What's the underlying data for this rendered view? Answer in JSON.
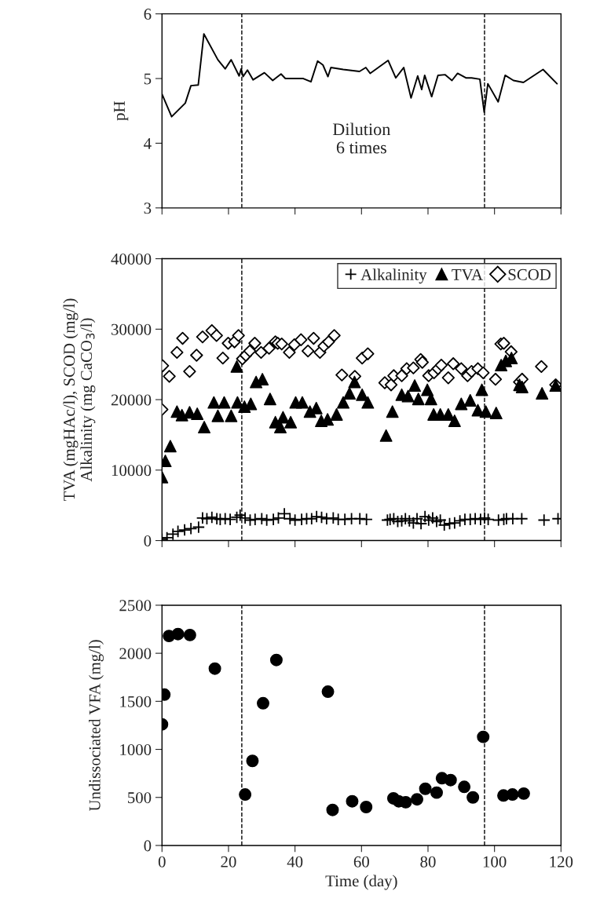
{
  "chart_data": [
    {
      "type": "line",
      "ylabel": "pH",
      "xlim": [
        0,
        120
      ],
      "xticks": [
        0,
        20,
        40,
        60,
        80,
        100,
        120
      ],
      "ylim": [
        3,
        6
      ],
      "yticks": [
        3,
        4,
        5,
        6
      ],
      "tick_labels": "y",
      "line_style": "solid",
      "marker": "none",
      "annotations": [
        "Dilution\n6 times"
      ],
      "ref_lines": [
        {
          "axis": "x",
          "value": 24,
          "color": "#000000",
          "line_style": "dashed"
        },
        {
          "axis": "x",
          "value": 97,
          "color": "#000000",
          "line_style": "dashed"
        }
      ],
      "series": [
        {
          "color": "#000000",
          "x": [
            0,
            2.9,
            7.0,
            8.7,
            10.9,
            12.6,
            16.8,
            19.0,
            20.8,
            23.2,
            23.8,
            24.4,
            25.7,
            27.4,
            30.8,
            33.3,
            35.8,
            37.1,
            42.5,
            44.8,
            46.8,
            48.4,
            49.9,
            50.8,
            54.5,
            59.4,
            61.3,
            62.6,
            68.0,
            70.3,
            72.7,
            74.9,
            76.9,
            78.1,
            79.0,
            81.1,
            83.0,
            85.1,
            87.2,
            88.9,
            91.4,
            93.1,
            95.6,
            96.9,
            98.0,
            101.1,
            103.2,
            105.7,
            108.7,
            114.6,
            118.8
          ],
          "values": [
            4.76,
            4.41,
            4.62,
            4.89,
            4.9,
            5.69,
            5.29,
            5.15,
            5.29,
            5.04,
            5.15,
            5.03,
            5.13,
            4.98,
            5.09,
            4.97,
            5.07,
            5.0,
            5.0,
            4.95,
            5.27,
            5.21,
            5.03,
            5.17,
            5.14,
            5.11,
            5.17,
            5.08,
            5.28,
            5.01,
            5.17,
            4.7,
            5.04,
            4.83,
            5.05,
            4.72,
            5.05,
            5.06,
            4.97,
            5.08,
            5.01,
            5.01,
            4.99,
            4.48,
            4.92,
            4.64,
            5.05,
            4.97,
            4.94,
            5.14,
            4.92
          ]
        }
      ]
    },
    {
      "type": "scatter",
      "ylabel": "TVA (mgHAc/l), SCOD (mg/l)\nAlkalinity (mg CaCO$_{3}$/l)",
      "xlim": [
        0,
        120
      ],
      "xticks": [
        0,
        20,
        40,
        60,
        80,
        100,
        120
      ],
      "ylim": [
        0,
        40000
      ],
      "yticks": [
        0,
        10000,
        20000,
        30000,
        40000
      ],
      "tick_labels": "y",
      "legend": "top right",
      "ref_lines": [
        {
          "axis": "x",
          "value": 24,
          "color": "#000000",
          "line_style": "dashed"
        },
        {
          "axis": "x",
          "value": 97,
          "color": "#000000",
          "line_style": "dashed"
        }
      ],
      "series": [
        {
          "name": "Alkalinity",
          "color": "#000000",
          "marker": "cross",
          "x": [
            0,
            1.5,
            3.3,
            4.8,
            6.8,
            8.7,
            11,
            12.2,
            13.5,
            15,
            16.5,
            17.5,
            19,
            20.5,
            22.5,
            23.5,
            25,
            26.5,
            28,
            30,
            31.5,
            33.5,
            35,
            36.8,
            38.5,
            40,
            42,
            43.5,
            45,
            46.5,
            48,
            49.5,
            51.5,
            53,
            55,
            57,
            59.5,
            61.5,
            67.8,
            68.6,
            69.7,
            70.9,
            72.1,
            73.2,
            74.4,
            75.6,
            76.7,
            77.9,
            79.1,
            80.2,
            81.4,
            82.6,
            83.7,
            84.9,
            86.5,
            88.0,
            89.6,
            91.1,
            92.7,
            94.2,
            95.8,
            97.0,
            98.1,
            101.2,
            102.8,
            103.6,
            105.5,
            108.2,
            114.9,
            119.1
          ],
          "values": [
            200,
            400,
            900,
            1300,
            1500,
            1700,
            1900,
            3200,
            3100,
            3300,
            3100,
            3000,
            3100,
            3000,
            3300,
            3600,
            3200,
            2900,
            3000,
            3100,
            2900,
            3000,
            3200,
            3800,
            3100,
            2900,
            3000,
            3100,
            3100,
            3400,
            3300,
            3100,
            3200,
            3000,
            3000,
            3100,
            3100,
            3000,
            2900,
            3000,
            3100,
            2700,
            2800,
            3100,
            2800,
            2500,
            3100,
            2400,
            3400,
            2900,
            3200,
            2700,
            2900,
            2200,
            2400,
            2500,
            2800,
            3000,
            3000,
            3100,
            3000,
            3200,
            3000,
            2900,
            3000,
            3100,
            3100,
            3100,
            2900,
            3100
          ]
        },
        {
          "name": "TVA",
          "color": "#000000",
          "marker": "triangle",
          "x": [
            0,
            1.0,
            2.5,
            4.5,
            6.0,
            8.3,
            10.6,
            12.7,
            15.6,
            16.8,
            18.7,
            20.8,
            22.5,
            22.7,
            24.8,
            26.7,
            28.3,
            30.2,
            32.5,
            34.1,
            35.6,
            36.4,
            38.7,
            40.2,
            42.2,
            44.5,
            46.4,
            47.9,
            49.8,
            52.5,
            54.5,
            56.4,
            57.9,
            60.2,
            61.9,
            67.4,
            69.3,
            72.1,
            74.0,
            76.0,
            77.1,
            79.8,
            80.9,
            81.7,
            83.7,
            86.1,
            88.0,
            90.0,
            92.7,
            95.0,
            96.2,
            97.4,
            100.5,
            102.0,
            103.4,
            105.1,
            107.5,
            108.3,
            114.3,
            118.4
          ],
          "values": [
            9000,
            11300,
            13400,
            18300,
            17800,
            18200,
            18000,
            16100,
            19600,
            17700,
            19600,
            17700,
            24700,
            19600,
            19000,
            19400,
            22500,
            22900,
            20100,
            16800,
            16100,
            17500,
            16800,
            19600,
            19600,
            18300,
            18800,
            17000,
            17200,
            17900,
            19600,
            20900,
            22500,
            20700,
            19600,
            14900,
            18300,
            20700,
            20500,
            22000,
            20100,
            21400,
            20100,
            17900,
            17900,
            17900,
            17000,
            19400,
            19900,
            18500,
            21400,
            18300,
            18100,
            24900,
            25500,
            25900,
            22100,
            21800,
            20900,
            22000
          ]
        },
        {
          "name": "SCOD",
          "color": "#000000",
          "marker": "diamond",
          "x": [
            0,
            0.2,
            2.2,
            4.5,
            6.2,
            8.3,
            10.4,
            12.2,
            15.0,
            16.4,
            18.3,
            19.9,
            21.8,
            23.0,
            24.2,
            25.2,
            26.4,
            27.9,
            29.8,
            32.2,
            34.1,
            34.8,
            36.0,
            38.3,
            39.8,
            41.8,
            43.9,
            45.6,
            47.5,
            48.7,
            50.1,
            51.8,
            54.1,
            58.0,
            60.2,
            61.9,
            67.0,
            68.9,
            69.7,
            72.1,
            73.6,
            75.6,
            77.8,
            78.3,
            80.2,
            81.8,
            83.0,
            84.0,
            86.1,
            87.6,
            90.0,
            91.9,
            93.1,
            95.0,
            96.6,
            100.3,
            101.9,
            102.8,
            105.0,
            107.5,
            108.3,
            114.1,
            118.4
          ],
          "values": [
            18600,
            24800,
            23300,
            26700,
            28700,
            24000,
            26300,
            28900,
            29800,
            29100,
            25900,
            28000,
            28200,
            29100,
            25800,
            26300,
            26900,
            28000,
            26700,
            27300,
            28200,
            28000,
            27900,
            26700,
            27800,
            28500,
            26900,
            28700,
            26700,
            27600,
            28200,
            29100,
            23500,
            23300,
            25900,
            26500,
            22400,
            22100,
            23400,
            23400,
            24400,
            24500,
            25700,
            25300,
            23400,
            23800,
            24400,
            24900,
            23100,
            25100,
            24400,
            23400,
            24000,
            24400,
            23800,
            22900,
            27900,
            28000,
            26800,
            22500,
            22900,
            24700,
            22100
          ]
        }
      ]
    },
    {
      "type": "scatter",
      "xlabel": "Time (day)",
      "ylabel": "Undissociated VFA (mg/l)",
      "xlim": [
        0,
        120
      ],
      "xticks": [
        0,
        20,
        40,
        60,
        80,
        100,
        120
      ],
      "ylim": [
        0,
        2500
      ],
      "yticks": [
        0,
        500,
        1000,
        1500,
        2000,
        2500
      ],
      "ref_lines": [
        {
          "axis": "x",
          "value": 24,
          "color": "#000000",
          "line_style": "dashed"
        },
        {
          "axis": "x",
          "value": 97,
          "color": "#000000",
          "line_style": "dashed"
        }
      ],
      "series": [
        {
          "color": "#000000",
          "marker": "circle",
          "x": [
            0,
            0.7,
            2.1,
            4.8,
            8.4,
            15.9,
            25.0,
            27.2,
            30.4,
            34.4,
            49.9,
            51.3,
            57.2,
            61.4,
            69.6,
            71.2,
            73.3,
            76.7,
            79.2,
            82.6,
            84.2,
            86.8,
            90.9,
            93.5,
            96.6,
            102.7,
            105.4,
            108.8
          ],
          "values": [
            1260,
            1570,
            2180,
            2200,
            2190,
            1840,
            530,
            880,
            1480,
            1930,
            1600,
            370,
            460,
            400,
            490,
            460,
            450,
            480,
            590,
            550,
            700,
            680,
            610,
            500,
            1130,
            520,
            530,
            540
          ]
        }
      ]
    }
  ]
}
